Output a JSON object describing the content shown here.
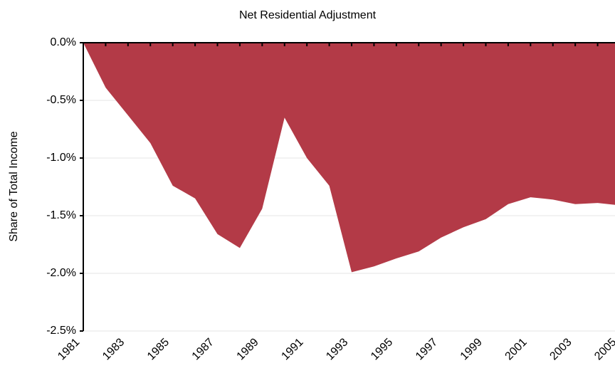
{
  "chart_data": {
    "type": "area",
    "title": "Net Residential Adjustment",
    "y_label": "Share of Total Income",
    "x": [
      1981,
      1982,
      1983,
      1984,
      1985,
      1986,
      1987,
      1988,
      1989,
      1990,
      1991,
      1992,
      1993,
      1994,
      1995,
      1996,
      1997,
      1998,
      1999,
      2000,
      2001,
      2002,
      2003,
      2004,
      2005
    ],
    "values": [
      0,
      -0.39,
      -0.63,
      -0.87,
      -1.24,
      -1.35,
      -1.66,
      -1.78,
      -1.44,
      -0.65,
      -1.0,
      -1.24,
      -1.99,
      -1.94,
      -1.87,
      -1.81,
      -1.69,
      -1.6,
      -1.53,
      -1.4,
      -1.34,
      -1.36,
      -1.4,
      -1.39,
      -1.41
    ],
    "color": "#b33a47",
    "xlim": [
      1981,
      2005
    ],
    "xticks": [
      1981,
      1983,
      1985,
      1987,
      1989,
      1991,
      1993,
      1995,
      1997,
      1999,
      2001,
      2003,
      2005
    ],
    "ylim": [
      -2.5,
      0
    ],
    "yticks": [
      {
        "value": 0,
        "label": "0.0%"
      },
      {
        "value": -0.5,
        "label": "-0.5%"
      },
      {
        "value": -1.0,
        "label": "-1.0%"
      },
      {
        "value": -1.5,
        "label": "-1.5%"
      },
      {
        "value": -2.0,
        "label": "-2.0%"
      },
      {
        "value": -2.5,
        "label": "-2.5%"
      }
    ],
    "grid": true
  }
}
